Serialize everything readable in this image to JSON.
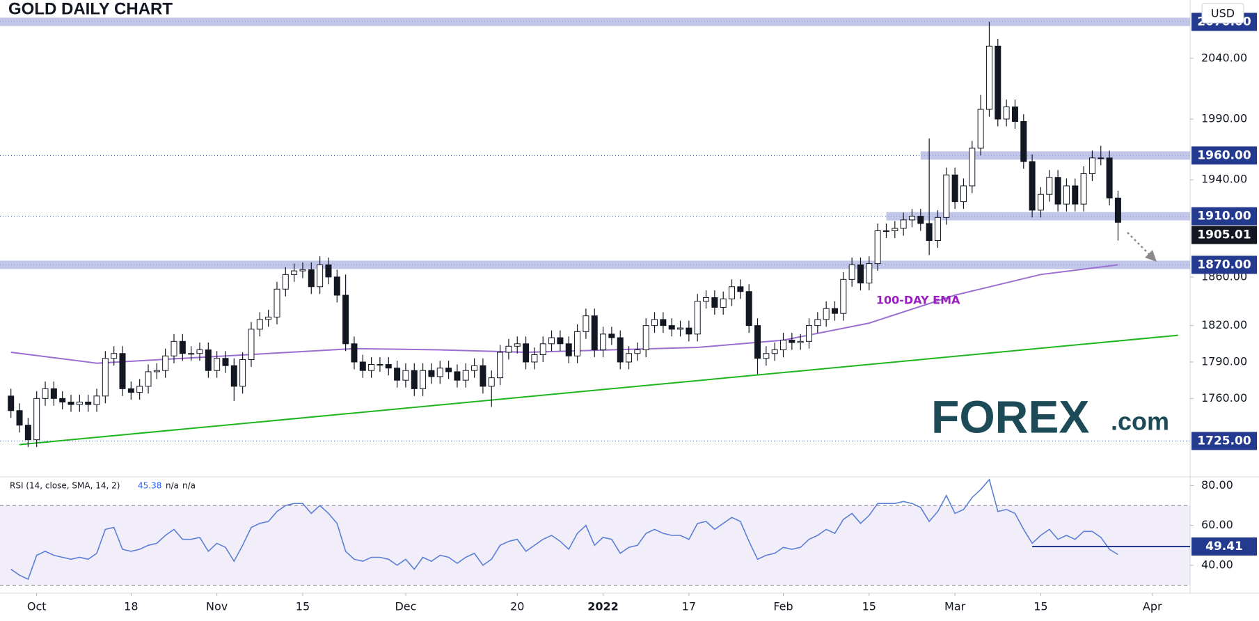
{
  "chart_data": [
    {
      "type": "candlestick",
      "title": "GOLD DAILY CHART",
      "currency": "USD",
      "open": [
        1762,
        1750,
        1738,
        1726,
        1760,
        1768,
        1760,
        1757,
        1755,
        1757,
        1755,
        1762,
        1793,
        1797,
        1768,
        1765,
        1770,
        1782,
        1783,
        1795,
        1807,
        1797,
        1797,
        1800,
        1783,
        1793,
        1787,
        1770,
        1792,
        1817,
        1825,
        1827,
        1850,
        1862,
        1865,
        1866,
        1852,
        1870,
        1860,
        1845,
        1805,
        1790,
        1783,
        1788,
        1788,
        1785,
        1775,
        1783,
        1768,
        1783,
        1778,
        1785,
        1782,
        1775,
        1783,
        1787,
        1770,
        1777,
        1798,
        1803,
        1805,
        1790,
        1796,
        1805,
        1810,
        1805,
        1795,
        1815,
        1828,
        1800,
        1813,
        1810,
        1790,
        1797,
        1800,
        1820,
        1825,
        1820,
        1817,
        1818,
        1813,
        1840,
        1843,
        1835,
        1842,
        1852,
        1848,
        1820,
        1793,
        1797,
        1800,
        1808,
        1806,
        1807,
        1820,
        1825,
        1834,
        1830,
        1858,
        1870,
        1855,
        1871,
        1898,
        1898,
        1900,
        1907,
        1910,
        1904,
        1890,
        1909,
        1944,
        1922,
        1935,
        1966,
        1998,
        2050,
        1990,
        2000,
        1988,
        1955,
        1915,
        1928,
        1942,
        1920,
        1935,
        1920,
        1945,
        1958,
        1958,
        1925
      ],
      "high": [
        1768,
        1756,
        1744,
        1766,
        1774,
        1774,
        1766,
        1763,
        1763,
        1763,
        1768,
        1799,
        1803,
        1803,
        1774,
        1776,
        1788,
        1789,
        1801,
        1813,
        1813,
        1803,
        1806,
        1806,
        1799,
        1799,
        1793,
        1798,
        1823,
        1831,
        1833,
        1856,
        1868,
        1871,
        1872,
        1872,
        1877,
        1876,
        1866,
        1862,
        1811,
        1796,
        1794,
        1794,
        1794,
        1791,
        1789,
        1789,
        1789,
        1789,
        1791,
        1791,
        1788,
        1789,
        1793,
        1793,
        1783,
        1804,
        1809,
        1811,
        1811,
        1802,
        1811,
        1816,
        1816,
        1811,
        1821,
        1834,
        1834,
        1819,
        1819,
        1816,
        1803,
        1806,
        1826,
        1831,
        1831,
        1826,
        1824,
        1824,
        1846,
        1849,
        1849,
        1848,
        1858,
        1858,
        1854,
        1826,
        1803,
        1806,
        1814,
        1814,
        1813,
        1826,
        1831,
        1840,
        1840,
        1864,
        1876,
        1876,
        1877,
        1904,
        1904,
        1906,
        1913,
        1916,
        1916,
        1974,
        1915,
        1950,
        1950,
        1941,
        1972,
        2010,
        2070,
        2056,
        2006,
        2006,
        1994,
        1961,
        1934,
        1948,
        1948,
        1941,
        1941,
        1951,
        1964,
        1968,
        1964,
        1931
      ],
      "low": [
        1744,
        1732,
        1720,
        1720,
        1754,
        1754,
        1751,
        1749,
        1749,
        1749,
        1749,
        1756,
        1787,
        1762,
        1759,
        1759,
        1764,
        1776,
        1777,
        1789,
        1791,
        1791,
        1791,
        1777,
        1777,
        1781,
        1758,
        1764,
        1786,
        1811,
        1819,
        1821,
        1844,
        1856,
        1859,
        1846,
        1846,
        1854,
        1839,
        1799,
        1784,
        1777,
        1777,
        1782,
        1779,
        1769,
        1769,
        1762,
        1762,
        1772,
        1772,
        1776,
        1769,
        1769,
        1777,
        1764,
        1753,
        1771,
        1792,
        1797,
        1784,
        1784,
        1790,
        1799,
        1799,
        1789,
        1789,
        1809,
        1794,
        1794,
        1804,
        1784,
        1784,
        1791,
        1794,
        1814,
        1814,
        1811,
        1811,
        1807,
        1807,
        1834,
        1829,
        1829,
        1836,
        1842,
        1814,
        1780,
        1787,
        1791,
        1794,
        1800,
        1800,
        1801,
        1814,
        1819,
        1824,
        1824,
        1852,
        1849,
        1849,
        1865,
        1892,
        1892,
        1894,
        1901,
        1898,
        1878,
        1884,
        1903,
        1916,
        1916,
        1929,
        1960,
        1992,
        1984,
        1984,
        1982,
        1949,
        1909,
        1909,
        1922,
        1914,
        1914,
        1914,
        1914,
        1939,
        1952,
        1919,
        1890
      ],
      "close": [
        1750,
        1738,
        1726,
        1760,
        1768,
        1760,
        1757,
        1755,
        1757,
        1755,
        1762,
        1793,
        1797,
        1768,
        1765,
        1770,
        1782,
        1783,
        1795,
        1807,
        1797,
        1797,
        1800,
        1783,
        1793,
        1787,
        1770,
        1792,
        1817,
        1825,
        1827,
        1850,
        1862,
        1865,
        1866,
        1852,
        1870,
        1860,
        1845,
        1805,
        1790,
        1783,
        1788,
        1788,
        1785,
        1775,
        1783,
        1768,
        1783,
        1778,
        1785,
        1782,
        1775,
        1783,
        1787,
        1770,
        1777,
        1798,
        1803,
        1805,
        1790,
        1796,
        1805,
        1810,
        1805,
        1795,
        1815,
        1828,
        1800,
        1813,
        1810,
        1790,
        1797,
        1800,
        1820,
        1825,
        1820,
        1817,
        1818,
        1813,
        1840,
        1843,
        1835,
        1842,
        1852,
        1848,
        1820,
        1793,
        1797,
        1800,
        1808,
        1806,
        1807,
        1820,
        1825,
        1834,
        1830,
        1858,
        1870,
        1855,
        1871,
        1898,
        1898,
        1900,
        1907,
        1910,
        1904,
        1890,
        1909,
        1944,
        1922,
        1935,
        1966,
        1998,
        2050,
        1990,
        2000,
        1988,
        1955,
        1915,
        1928,
        1942,
        1920,
        1935,
        1920,
        1945,
        1958,
        1958,
        1925,
        1905.01
      ],
      "color_up": "#ffffff",
      "color_down": "#131722",
      "series": [
        {
          "name": "100-DAY EMA",
          "color": "#9b6fd0",
          "x": [
            0,
            10,
            20,
            30,
            40,
            50,
            60,
            70,
            80,
            90,
            100,
            110,
            120,
            129
          ],
          "values": [
            1798,
            1789,
            1793,
            1797,
            1801,
            1800,
            1798,
            1800,
            1802,
            1808,
            1822,
            1845,
            1862,
            1870
          ]
        },
        {
          "color": "#1fb51f",
          "x": [
            1,
            136
          ],
          "values": [
            1722,
            1812
          ]
        }
      ],
      "xlim": [
        -0.3,
        137.4
      ],
      "ylim": [
        1696,
        2088
      ],
      "grid": false,
      "yticks": [
        {
          "value": 2040,
          "label": "2040.00"
        },
        {
          "value": 1990,
          "label": "1990.00"
        },
        {
          "value": 1940,
          "label": "1940.00"
        },
        {
          "value": 1860,
          "label": "1860.00"
        },
        {
          "value": 1820,
          "label": "1820.00"
        },
        {
          "value": 1790,
          "label": "1790.00"
        },
        {
          "value": 1760,
          "label": "1760.00"
        }
      ],
      "levels": [
        {
          "value": 2070,
          "label": "2070.00",
          "band": true
        },
        {
          "value": 1960,
          "label": "1960.00",
          "band": true,
          "band_from": 106
        },
        {
          "value": 1910,
          "label": "1910.00",
          "band": true,
          "band_from": 102
        },
        {
          "value": 1870,
          "label": "1870.00",
          "band": true
        },
        {
          "value": 1725,
          "label": "1725.00",
          "band": false
        }
      ],
      "current_price": {
        "value": 1905.01,
        "label": "1905.01"
      },
      "logo": [
        "FOREX",
        ".com"
      ]
    },
    {
      "type": "line",
      "title": "RSI (14, close, SMA, 14, 2)",
      "last_value": 45.38,
      "extras": [
        "n/a",
        "n/a"
      ],
      "series": [
        {
          "color": "#5b7fd6",
          "values": [
            38,
            35,
            33,
            45,
            47,
            45,
            44,
            43,
            44,
            43,
            46,
            58,
            59,
            48,
            47,
            48,
            50,
            51,
            55,
            58,
            53,
            53,
            54,
            47,
            51,
            49,
            42,
            50,
            59,
            61,
            62,
            67,
            70,
            71,
            71,
            66,
            70,
            66,
            61,
            47,
            43,
            42,
            44,
            44,
            43,
            40,
            43,
            38,
            44,
            42,
            45,
            44,
            41,
            44,
            46,
            40,
            43,
            50,
            52,
            53,
            47,
            50,
            53,
            55,
            52,
            48,
            56,
            60,
            50,
            54,
            53,
            46,
            49,
            50,
            56,
            58,
            56,
            55,
            55,
            53,
            61,
            62,
            58,
            61,
            64,
            62,
            52,
            43,
            45,
            46,
            49,
            48,
            49,
            53,
            55,
            58,
            56,
            63,
            66,
            61,
            65,
            71,
            71,
            71,
            72,
            71,
            69,
            62,
            67,
            75,
            66,
            68,
            74,
            78,
            83,
            67,
            68,
            66,
            58,
            51,
            55,
            58,
            53,
            55,
            53,
            57,
            57,
            54,
            48,
            45.38
          ]
        }
      ],
      "xlim": [
        -0.3,
        137.4
      ],
      "ylim": [
        26,
        84
      ],
      "bands": [
        30,
        70
      ],
      "yticks": [
        {
          "value": 40,
          "label": "40.00"
        },
        {
          "value": 60,
          "label": "60.00"
        },
        {
          "value": 80,
          "label": "80.00"
        }
      ],
      "levels": [
        {
          "value": 49.41,
          "from": 119
        }
      ],
      "xticks": [
        {
          "value": 3,
          "label": "Oct"
        },
        {
          "value": 14,
          "label": "18"
        },
        {
          "value": 24,
          "label": "Nov"
        },
        {
          "value": 34,
          "label": "15"
        },
        {
          "value": 46,
          "label": "Dec"
        },
        {
          "value": 59,
          "label": "20"
        },
        {
          "value": 69,
          "label": "2022"
        },
        {
          "value": 79,
          "label": "17"
        },
        {
          "value": 90,
          "label": "Feb"
        },
        {
          "value": 100,
          "label": "15"
        },
        {
          "value": 110,
          "label": "Mar"
        },
        {
          "value": 120,
          "label": "15"
        },
        {
          "value": 133,
          "label": "Apr"
        }
      ]
    }
  ]
}
